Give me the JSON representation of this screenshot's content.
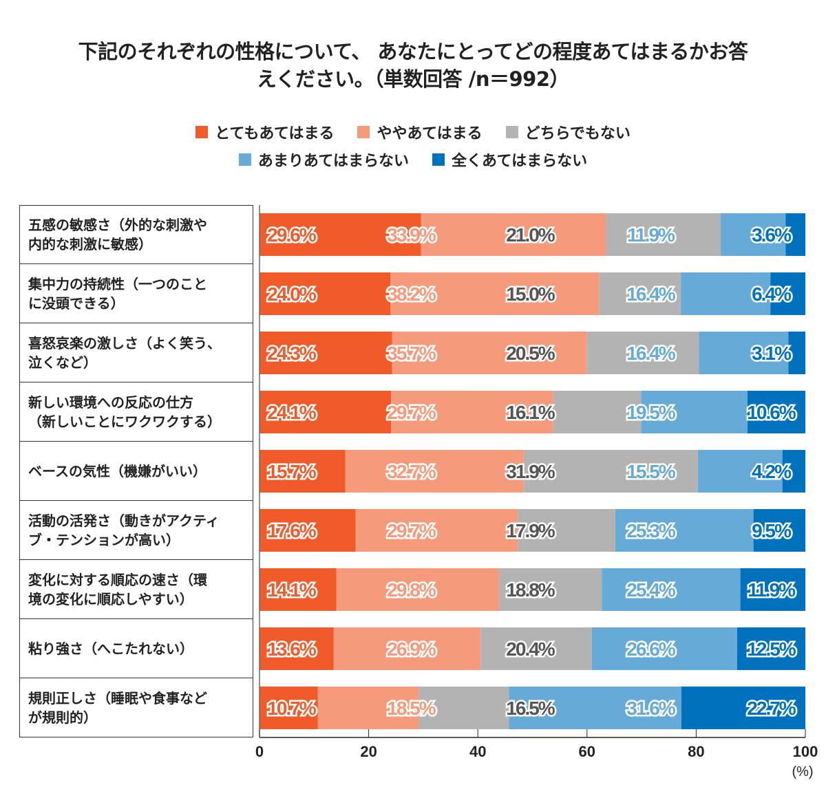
{
  "chart_data": {
    "type": "bar",
    "orientation": "horizontal",
    "stacked": true,
    "title": "下記のそれぞれの性格について、 あなたにとってどの程度あてはまるかお答えください。（単数回答 /n＝992）",
    "title_lines": [
      "下記のそれぞれの性格について、 あなたにとってどの程度あてはまるかお答",
      "えください。（単数回答 /n＝992）"
    ],
    "xlabel": "(%)",
    "xlim": [
      0,
      100
    ],
    "xticks": [
      "0",
      "20",
      "40",
      "60",
      "80",
      "100"
    ],
    "legend_position": "top",
    "categories": [
      [
        "五感の敏感さ（外的な刺激や",
        "内的な刺激に敏感）"
      ],
      [
        "集中力の持続性（一つのこと",
        "に没頭できる）"
      ],
      [
        "喜怒哀楽の激しさ（よく笑う、",
        "泣くなど）"
      ],
      [
        "新しい環境への反応の仕方",
        "（新しいことにワクワクする）"
      ],
      [
        "ベースの気性（機嫌がいい）"
      ],
      [
        "活動の活発さ（動きがアクティ",
        "ブ・テンションが高い）"
      ],
      [
        "変化に対する順応の速さ（環",
        "境の変化に順応しやすい）"
      ],
      [
        "粘り強さ（へこたれない）"
      ],
      [
        "規則正しさ（睡眠や食事など",
        "が規則的）"
      ]
    ],
    "series": [
      {
        "name": "とてもあてはまる",
        "color": "#f15a29",
        "values": [
          29.6,
          24.0,
          24.3,
          24.1,
          15.7,
          17.6,
          14.1,
          13.6,
          10.7
        ]
      },
      {
        "name": "ややあてはまる",
        "color": "#f59b7c",
        "values": [
          33.9,
          38.2,
          35.7,
          29.7,
          32.7,
          29.7,
          29.8,
          26.9,
          18.5
        ]
      },
      {
        "name": "どちらでもない",
        "color": "#b3b3b3",
        "values": [
          21.0,
          15.0,
          20.5,
          16.1,
          31.9,
          17.9,
          18.8,
          20.4,
          16.5
        ]
      },
      {
        "name": "あまりあてはまらない",
        "color": "#66aad7",
        "values": [
          11.9,
          16.4,
          16.4,
          19.5,
          15.5,
          25.3,
          25.4,
          26.6,
          31.6
        ]
      },
      {
        "name": "全くあてはまらない",
        "color": "#0071bc",
        "values": [
          3.6,
          6.4,
          3.1,
          10.6,
          4.2,
          9.5,
          11.9,
          12.5,
          22.7
        ]
      }
    ],
    "label_colors": [
      "#f15a29",
      "#f59b7c",
      "#555555",
      "#66aad7",
      "#0071bc"
    ]
  }
}
